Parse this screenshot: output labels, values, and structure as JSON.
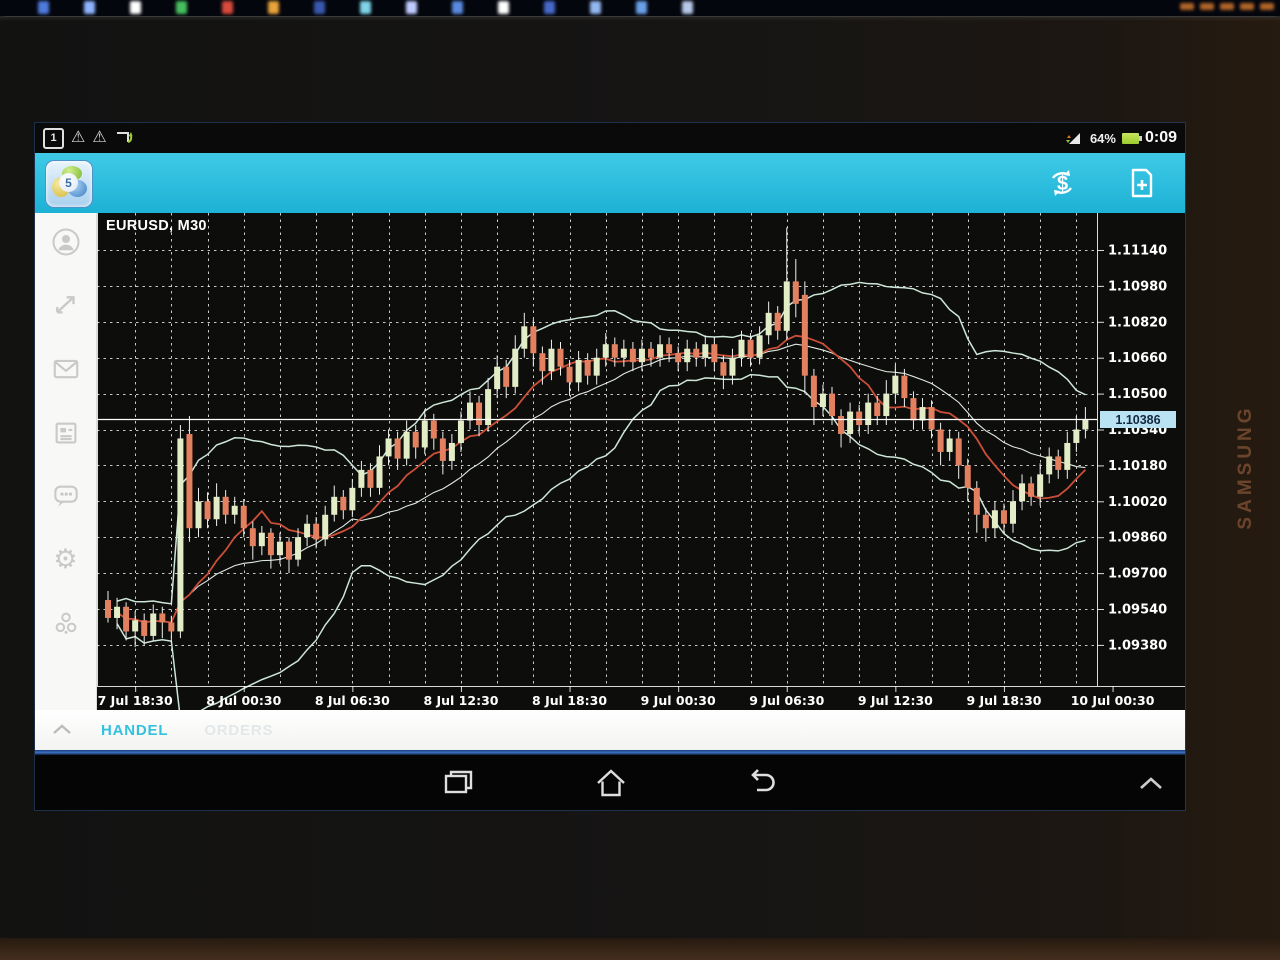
{
  "status_bar": {
    "notification_badge": "1",
    "icons": [
      "calendar-notification-icon",
      "warning-icon",
      "warning-icon",
      "screenshot-icon",
      "signal-icon",
      "battery-icon"
    ],
    "battery_percent": "64%",
    "time": "0:09"
  },
  "toolbar": {
    "app_logo": "metatrader5-logo",
    "actions": [
      "currency-trade-icon",
      "new-order-icon"
    ],
    "accent_color": "#1db1d5"
  },
  "sidebar": {
    "items": [
      "account-icon",
      "trade-arrows-icon",
      "mail-icon",
      "news-icon",
      "chat-icon",
      "settings-icon",
      "community-icon"
    ]
  },
  "chart": {
    "symbol_label": "EURUSD, M30",
    "current_price_label": "1.10386"
  },
  "tab_bar": {
    "tabs": [
      {
        "label": "HANDEL",
        "active": true
      },
      {
        "label": "ORDERS",
        "active": false
      }
    ]
  },
  "nav_bar": {
    "buttons": [
      "recents-icon",
      "home-icon",
      "back-icon",
      "chevron-up-icon"
    ]
  },
  "device": {
    "brand_label": "SAMSUNG"
  },
  "chart_data": {
    "type": "candlestick",
    "title": "EURUSD, M30",
    "timeframe": "M30",
    "x_ticks": [
      "7 Jul 18:30",
      "8 Jul 00:30",
      "8 Jul 06:30",
      "8 Jul 12:30",
      "8 Jul 18:30",
      "9 Jul 00:30",
      "9 Jul 06:30",
      "9 Jul 12:30",
      "9 Jul 18:30",
      "10 Jul 00:30"
    ],
    "y_ticks": [
      "1.11140",
      "1.10980",
      "1.10820",
      "1.10660",
      "1.10500",
      "1.10340",
      "1.10180",
      "1.10020",
      "1.09860",
      "1.09700",
      "1.09540",
      "1.09380"
    ],
    "top_price": 1.1114,
    "price_step": 0.0016,
    "current_price": 1.10386,
    "overlays": [
      {
        "name": "bollinger-upper",
        "period": 20,
        "mult": 2,
        "color": "#cde6d8"
      },
      {
        "name": "bollinger-middle",
        "period": 20,
        "color": "#dfe9e1"
      },
      {
        "name": "bollinger-lower",
        "period": 20,
        "mult": -2,
        "color": "#cde6d8"
      },
      {
        "name": "red-ma",
        "period": 10,
        "color": "#cb4f38"
      }
    ],
    "colors": {
      "background": "#0d0d0b",
      "grid": "rgba(255,255,255,0.78)",
      "bull": "#e2ecc6",
      "bear": "#e2805f",
      "wick": "#f0f0ee",
      "axis_text": "#ffffff",
      "current_line": "#ffffff",
      "badge_bg": "#b9e2f2"
    },
    "candles": [
      [
        1.0958,
        1.0962,
        1.0948,
        1.095
      ],
      [
        1.095,
        1.0959,
        1.0945,
        1.0955
      ],
      [
        1.0955,
        1.0957,
        1.094,
        1.0944
      ],
      [
        1.0944,
        1.0953,
        1.0937,
        1.0949
      ],
      [
        1.0949,
        1.0952,
        1.0938,
        1.0942
      ],
      [
        1.0942,
        1.0956,
        1.094,
        1.0952
      ],
      [
        1.0952,
        1.0955,
        1.0941,
        1.0948
      ],
      [
        1.0948,
        1.0951,
        1.0939,
        1.0944
      ],
      [
        1.0944,
        1.1036,
        1.0941,
        1.103
      ],
      [
        1.1032,
        1.104,
        1.0984,
        1.099
      ],
      [
        1.099,
        1.1008,
        1.0986,
        1.1002
      ],
      [
        1.1002,
        1.1006,
        1.099,
        1.0994
      ],
      [
        1.0994,
        1.101,
        1.0991,
        1.1004
      ],
      [
        1.1004,
        1.1007,
        1.0992,
        1.0996
      ],
      [
        1.0996,
        1.1004,
        1.0992,
        1.1
      ],
      [
        1.1,
        1.1003,
        1.0986,
        1.099
      ],
      [
        1.099,
        1.0993,
        1.0976,
        1.0982
      ],
      [
        1.0982,
        1.0991,
        1.0978,
        1.0988
      ],
      [
        1.0988,
        1.099,
        1.0972,
        1.0978
      ],
      [
        1.0978,
        1.0988,
        1.0974,
        1.0984
      ],
      [
        1.0984,
        1.0986,
        1.097,
        1.0976
      ],
      [
        1.0976,
        1.099,
        1.0973,
        1.0986
      ],
      [
        1.0986,
        1.0996,
        1.0982,
        1.0992
      ],
      [
        1.0992,
        1.0995,
        1.0981,
        1.0985
      ],
      [
        1.0985,
        1.1,
        1.0982,
        1.0996
      ],
      [
        1.0996,
        1.1009,
        1.0993,
        1.1004
      ],
      [
        1.1004,
        1.1007,
        1.0994,
        1.0998
      ],
      [
        1.0998,
        1.1012,
        1.0995,
        1.1008
      ],
      [
        1.1008,
        1.102,
        1.1004,
        1.1016
      ],
      [
        1.1016,
        1.1019,
        1.1004,
        1.1008
      ],
      [
        1.1008,
        1.1027,
        1.1005,
        1.1022
      ],
      [
        1.1022,
        1.1034,
        1.1018,
        1.103
      ],
      [
        1.103,
        1.1033,
        1.1016,
        1.1021
      ],
      [
        1.1021,
        1.1038,
        1.1018,
        1.1033
      ],
      [
        1.1033,
        1.1036,
        1.1021,
        1.1026
      ],
      [
        1.1026,
        1.1043,
        1.1023,
        1.1038
      ],
      [
        1.1038,
        1.1041,
        1.1025,
        1.103
      ],
      [
        1.103,
        1.1033,
        1.1014,
        1.102
      ],
      [
        1.102,
        1.1032,
        1.1016,
        1.1028
      ],
      [
        1.1028,
        1.1042,
        1.1024,
        1.1038
      ],
      [
        1.1038,
        1.1051,
        1.1034,
        1.1046
      ],
      [
        1.1046,
        1.1049,
        1.1031,
        1.1036
      ],
      [
        1.1036,
        1.1057,
        1.1033,
        1.1052
      ],
      [
        1.1052,
        1.1067,
        1.1048,
        1.1062
      ],
      [
        1.1062,
        1.1065,
        1.1048,
        1.1053
      ],
      [
        1.1053,
        1.1076,
        1.105,
        1.107
      ],
      [
        1.107,
        1.1086,
        1.1066,
        1.108
      ],
      [
        1.108,
        1.1083,
        1.1062,
        1.1068
      ],
      [
        1.1068,
        1.1071,
        1.1054,
        1.106
      ],
      [
        1.106,
        1.1074,
        1.1056,
        1.107
      ],
      [
        1.107,
        1.1073,
        1.1058,
        1.1062
      ],
      [
        1.1062,
        1.1065,
        1.1049,
        1.1055
      ],
      [
        1.1055,
        1.1069,
        1.1051,
        1.1065
      ],
      [
        1.1065,
        1.1068,
        1.1054,
        1.1058
      ],
      [
        1.1058,
        1.107,
        1.1054,
        1.1066
      ],
      [
        1.1066,
        1.1077,
        1.1062,
        1.1072
      ],
      [
        1.1072,
        1.1075,
        1.1062,
        1.1066
      ],
      [
        1.1066,
        1.1074,
        1.1062,
        1.107
      ],
      [
        1.107,
        1.1073,
        1.106,
        1.1064
      ],
      [
        1.1064,
        1.1074,
        1.106,
        1.107
      ],
      [
        1.107,
        1.1073,
        1.1062,
        1.1066
      ],
      [
        1.1066,
        1.1076,
        1.1062,
        1.1072
      ],
      [
        1.1072,
        1.1075,
        1.1064,
        1.1068
      ],
      [
        1.1068,
        1.1071,
        1.106,
        1.1064
      ],
      [
        1.1064,
        1.1074,
        1.106,
        1.107
      ],
      [
        1.107,
        1.1073,
        1.1062,
        1.1066
      ],
      [
        1.1066,
        1.1076,
        1.1062,
        1.1072
      ],
      [
        1.1072,
        1.1075,
        1.106,
        1.1064
      ],
      [
        1.1064,
        1.1067,
        1.1052,
        1.1058
      ],
      [
        1.1058,
        1.107,
        1.1054,
        1.1066
      ],
      [
        1.1066,
        1.1078,
        1.1062,
        1.1074
      ],
      [
        1.1074,
        1.1077,
        1.1062,
        1.1066
      ],
      [
        1.1066,
        1.108,
        1.1063,
        1.1076
      ],
      [
        1.1076,
        1.1091,
        1.1072,
        1.1086
      ],
      [
        1.1086,
        1.1089,
        1.1074,
        1.1078
      ],
      [
        1.1078,
        1.1124,
        1.1074,
        1.11
      ],
      [
        1.11,
        1.111,
        1.1084,
        1.109
      ],
      [
        1.1094,
        1.11,
        1.105,
        1.1058
      ],
      [
        1.1058,
        1.1061,
        1.1036,
        1.1044
      ],
      [
        1.1044,
        1.1054,
        1.104,
        1.105
      ],
      [
        1.105,
        1.1053,
        1.1036,
        1.104
      ],
      [
        1.104,
        1.1043,
        1.1026,
        1.1032
      ],
      [
        1.1032,
        1.1046,
        1.1028,
        1.1042
      ],
      [
        1.1042,
        1.1045,
        1.1032,
        1.1036
      ],
      [
        1.1036,
        1.105,
        1.1032,
        1.1046
      ],
      [
        1.1046,
        1.1049,
        1.1036,
        1.104
      ],
      [
        1.104,
        1.1056,
        1.1036,
        1.105
      ],
      [
        1.105,
        1.1063,
        1.1046,
        1.1058
      ],
      [
        1.1058,
        1.1061,
        1.1044,
        1.1048
      ],
      [
        1.1048,
        1.1051,
        1.1034,
        1.1038
      ],
      [
        1.1038,
        1.1048,
        1.1034,
        1.1044
      ],
      [
        1.1044,
        1.1047,
        1.103,
        1.1034
      ],
      [
        1.1034,
        1.1037,
        1.1018,
        1.1024
      ],
      [
        1.1024,
        1.1034,
        1.102,
        1.103
      ],
      [
        1.103,
        1.1033,
        1.1012,
        1.1018
      ],
      [
        1.1018,
        1.1021,
        1.1002,
        1.1008
      ],
      [
        1.1008,
        1.1011,
        1.0988,
        1.0996
      ],
      [
        1.0996,
        1.0999,
        1.0984,
        1.099
      ],
      [
        1.099,
        1.1002,
        1.0986,
        1.0998
      ],
      [
        1.0998,
        1.1001,
        1.0988,
        1.0992
      ],
      [
        1.0992,
        1.1007,
        1.0988,
        1.1002
      ],
      [
        1.1002,
        1.1014,
        1.0998,
        1.101
      ],
      [
        1.101,
        1.1013,
        1.1,
        1.1004
      ],
      [
        1.1004,
        1.1019,
        1.1,
        1.1014
      ],
      [
        1.1014,
        1.1026,
        1.101,
        1.1022
      ],
      [
        1.1022,
        1.1025,
        1.1012,
        1.1016
      ],
      [
        1.1016,
        1.1033,
        1.1012,
        1.1028
      ],
      [
        1.1028,
        1.104,
        1.1024,
        1.1034
      ],
      [
        1.1034,
        1.1044,
        1.103,
        1.10386
      ]
    ]
  }
}
